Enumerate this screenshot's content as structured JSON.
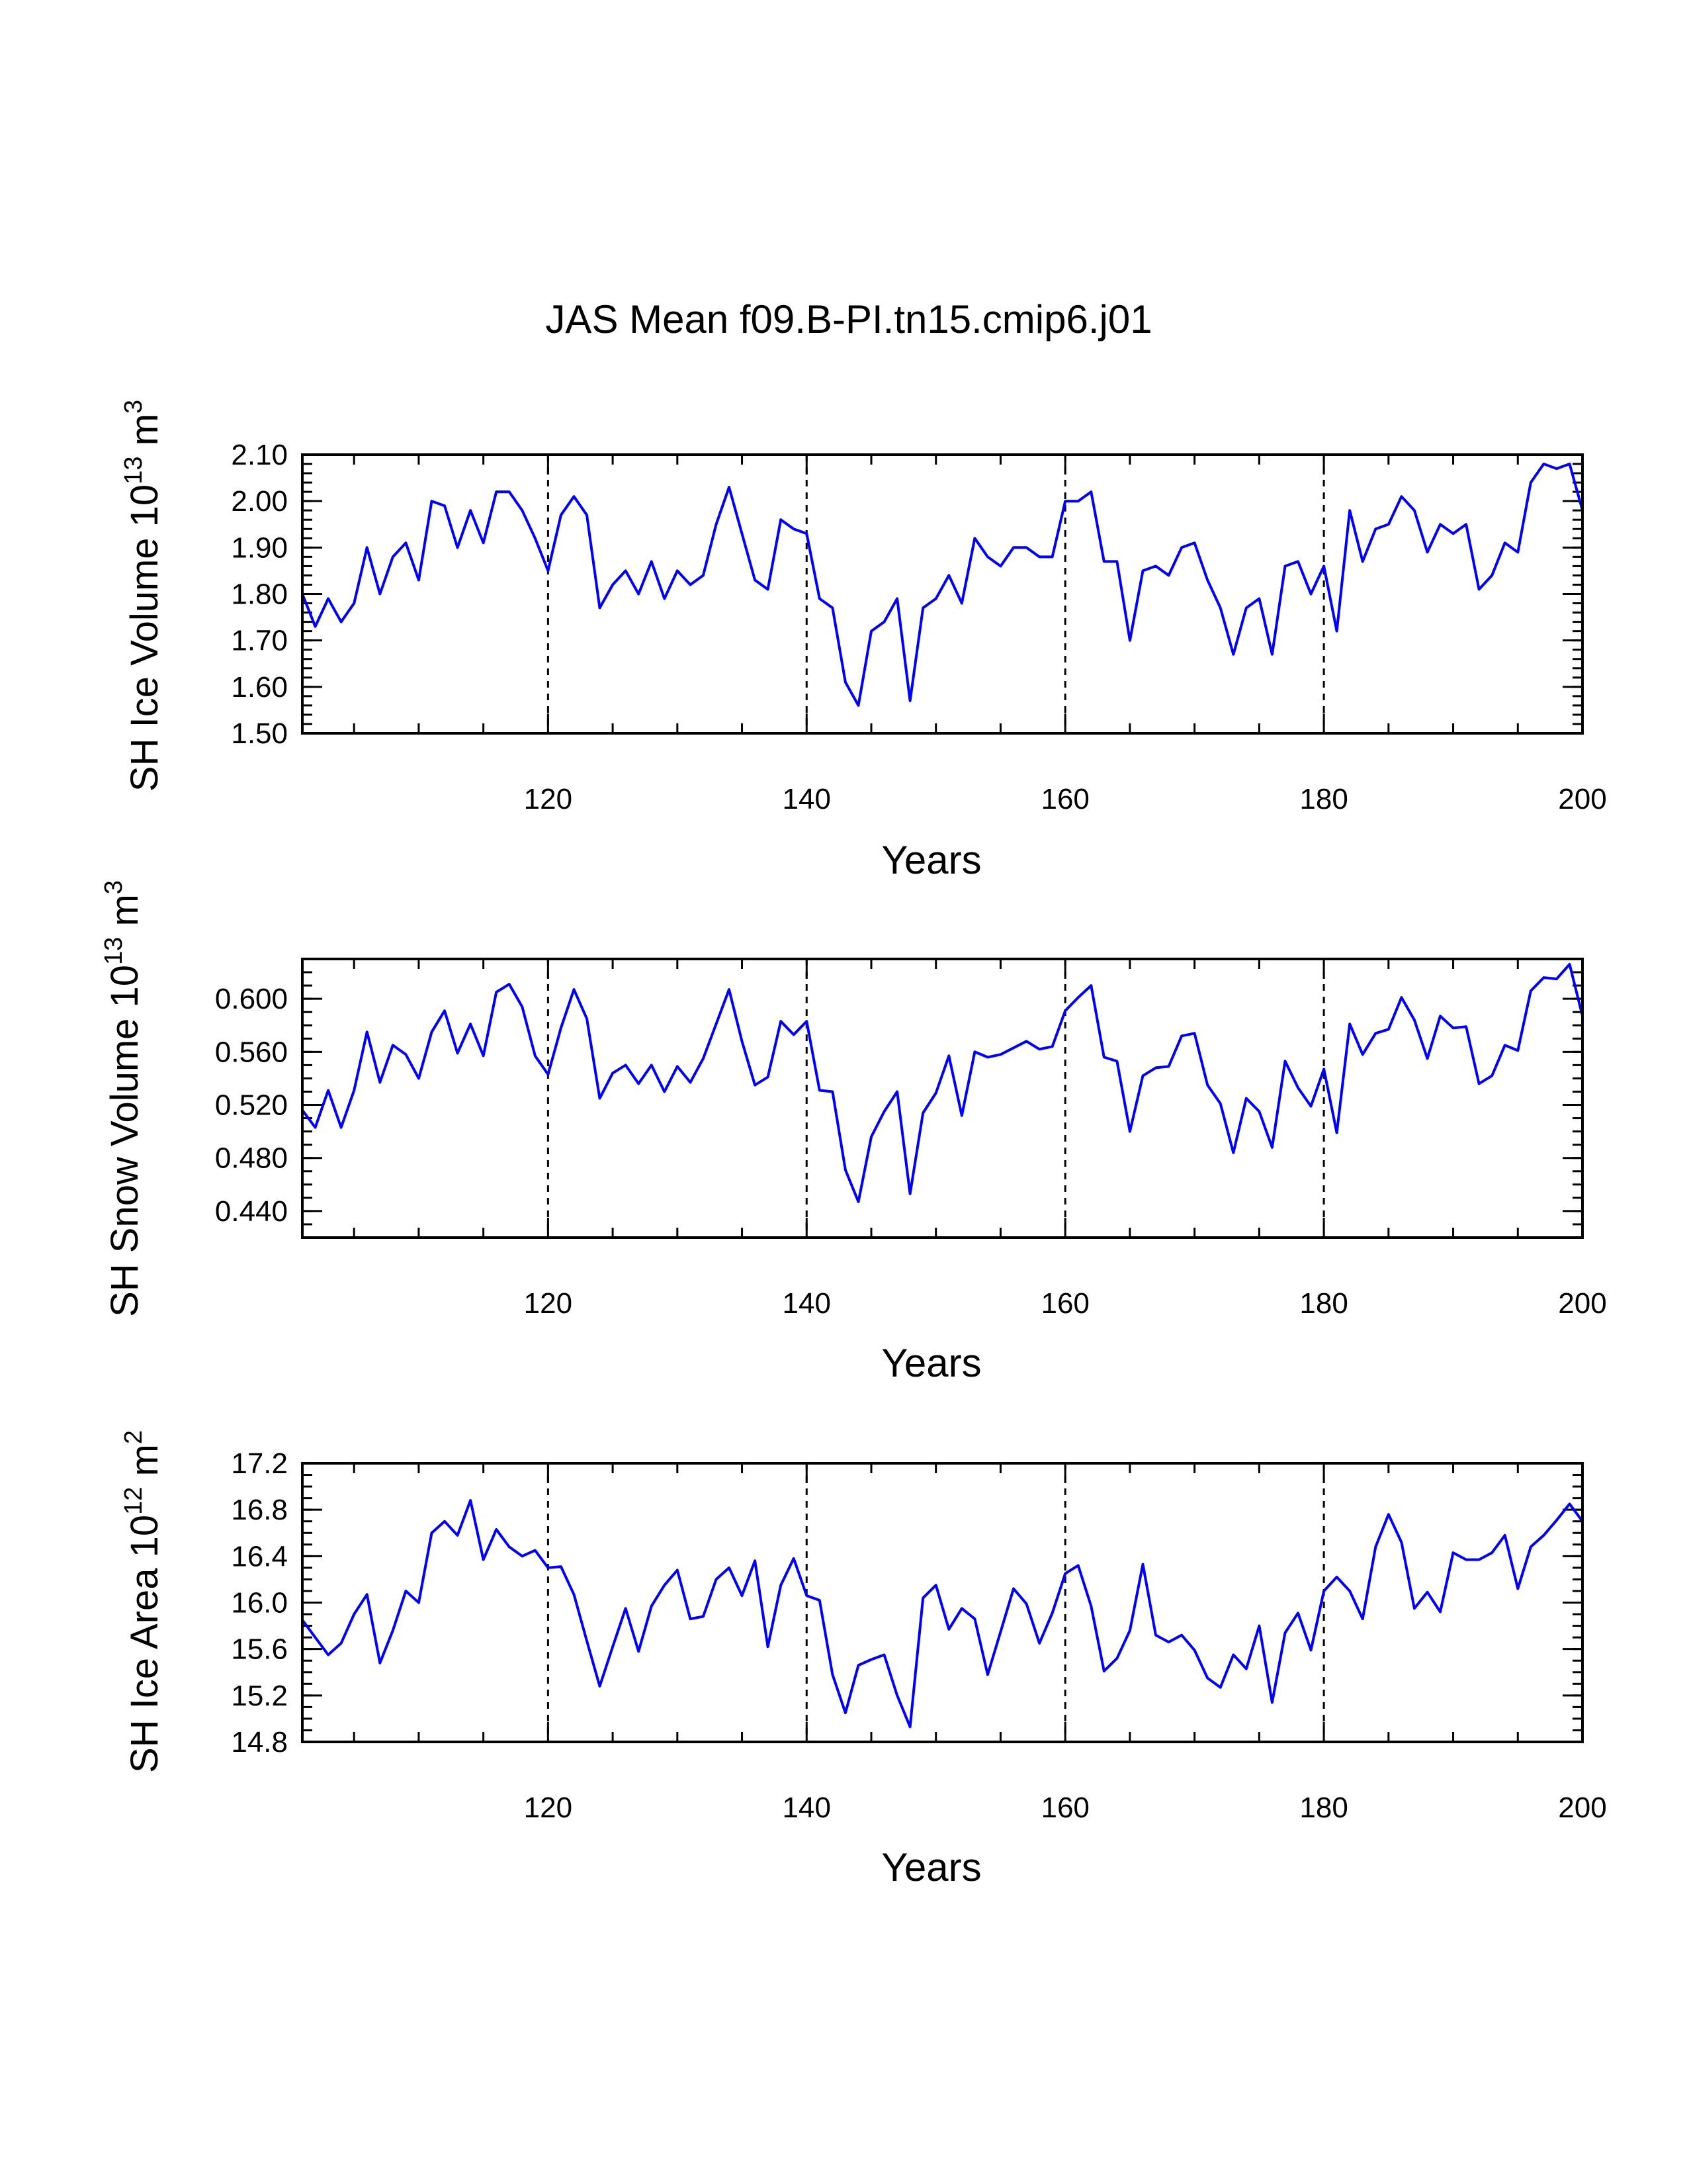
{
  "title": "JAS Mean f09.B-PI.tn15.cmip6.j01",
  "colors": {
    "line": "#0000ff",
    "axis": "#000000",
    "refline": "#000000"
  },
  "chart_data": [
    {
      "type": "line",
      "ylabel": "SH Ice Volume 10",
      "ylabel_exp": "13",
      "ylabel_unit": " m",
      "ylabel_unit_exp": "3",
      "xlabel": "Years",
      "xlim": [
        101,
        200
      ],
      "ylim": [
        1.5,
        2.1
      ],
      "xticks": [
        "120",
        "140",
        "160",
        "180",
        "200"
      ],
      "xtick_values": [
        120,
        140,
        160,
        180,
        200
      ],
      "yticks": [
        "1.50",
        "1.60",
        "1.70",
        "1.80",
        "1.90",
        "2.00",
        "2.10"
      ],
      "ytick_values": [
        1.5,
        1.6,
        1.7,
        1.8,
        1.9,
        2.0,
        2.1
      ],
      "ref_lines_x": [
        120,
        140,
        160,
        180
      ],
      "series": [
        {
          "x_start": 101,
          "values": [
            1.8,
            1.73,
            1.79,
            1.74,
            1.78,
            1.9,
            1.8,
            1.88,
            1.91,
            1.83,
            2.0,
            1.99,
            1.9,
            1.98,
            1.91,
            2.02,
            2.02,
            1.98,
            1.92,
            1.85,
            1.97,
            2.01,
            1.97,
            1.77,
            1.82,
            1.85,
            1.8,
            1.87,
            1.79,
            1.85,
            1.82,
            1.84,
            1.95,
            2.03,
            1.93,
            1.83,
            1.81,
            1.96,
            1.94,
            1.93,
            1.79,
            1.77,
            1.61,
            1.56,
            1.72,
            1.74,
            1.79,
            1.57,
            1.77,
            1.79,
            1.84,
            1.78,
            1.92,
            1.88,
            1.86,
            1.9,
            1.9,
            1.88,
            1.88,
            2.0,
            2.0,
            2.02,
            1.87,
            1.87,
            1.7,
            1.85,
            1.86,
            1.84,
            1.9,
            1.91,
            1.83,
            1.77,
            1.67,
            1.77,
            1.79,
            1.67,
            1.86,
            1.87,
            1.8,
            1.86,
            1.72,
            1.98,
            1.87,
            1.94,
            1.95,
            2.01,
            1.98,
            1.89,
            1.95,
            1.93,
            1.95,
            1.81,
            1.84,
            1.91,
            1.89,
            2.04,
            2.08,
            2.07,
            2.08,
            1.98
          ]
        }
      ]
    },
    {
      "type": "line",
      "ylabel": "SH Snow Volume 10",
      "ylabel_exp": "13",
      "ylabel_unit": " m",
      "ylabel_unit_exp": "3",
      "xlabel": "Years",
      "xlim": [
        101,
        200
      ],
      "ylim": [
        0.42,
        0.63
      ],
      "xticks": [
        "120",
        "140",
        "160",
        "180",
        "200"
      ],
      "xtick_values": [
        120,
        140,
        160,
        180,
        200
      ],
      "yticks": [
        "0.440",
        "0.480",
        "0.520",
        "0.560",
        "0.600"
      ],
      "ytick_values": [
        0.44,
        0.48,
        0.52,
        0.56,
        0.6
      ],
      "ref_lines_x": [
        120,
        140,
        160,
        180
      ],
      "series": [
        {
          "x_start": 101,
          "values": [
            0.516,
            0.503,
            0.531,
            0.503,
            0.531,
            0.575,
            0.537,
            0.565,
            0.558,
            0.54,
            0.575,
            0.591,
            0.559,
            0.581,
            0.557,
            0.605,
            0.611,
            0.594,
            0.557,
            0.543,
            0.578,
            0.607,
            0.585,
            0.525,
            0.544,
            0.55,
            0.536,
            0.55,
            0.53,
            0.549,
            0.537,
            0.555,
            0.581,
            0.607,
            0.568,
            0.535,
            0.541,
            0.583,
            0.573,
            0.583,
            0.531,
            0.53,
            0.471,
            0.447,
            0.496,
            0.515,
            0.53,
            0.453,
            0.514,
            0.529,
            0.557,
            0.512,
            0.56,
            0.556,
            0.558,
            0.563,
            0.568,
            0.562,
            0.564,
            0.591,
            0.601,
            0.61,
            0.556,
            0.553,
            0.5,
            0.542,
            0.548,
            0.549,
            0.572,
            0.574,
            0.535,
            0.521,
            0.484,
            0.525,
            0.515,
            0.488,
            0.553,
            0.533,
            0.519,
            0.547,
            0.499,
            0.581,
            0.558,
            0.574,
            0.577,
            0.601,
            0.584,
            0.555,
            0.587,
            0.578,
            0.579,
            0.536,
            0.542,
            0.565,
            0.561,
            0.606,
            0.616,
            0.615,
            0.626,
            0.587
          ]
        }
      ]
    },
    {
      "type": "line",
      "ylabel": "SH Ice Area 10",
      "ylabel_exp": "12",
      "ylabel_unit": " m",
      "ylabel_unit_exp": "2",
      "xlabel": "Years",
      "xlim": [
        101,
        200
      ],
      "ylim": [
        14.8,
        17.2
      ],
      "xticks": [
        "120",
        "140",
        "160",
        "180",
        "200"
      ],
      "xtick_values": [
        120,
        140,
        160,
        180,
        200
      ],
      "yticks": [
        "14.8",
        "15.2",
        "15.6",
        "16.0",
        "16.4",
        "16.8",
        "17.2"
      ],
      "ytick_values": [
        14.8,
        15.2,
        15.6,
        16.0,
        16.4,
        16.8,
        17.2
      ],
      "ref_lines_x": [
        120,
        140,
        160,
        180
      ],
      "series": [
        {
          "x_start": 101,
          "values": [
            15.85,
            15.7,
            15.55,
            15.65,
            15.9,
            16.07,
            15.48,
            15.76,
            16.1,
            16.0,
            16.6,
            16.7,
            16.58,
            16.88,
            16.37,
            16.63,
            16.48,
            16.4,
            16.45,
            16.3,
            16.31,
            16.07,
            15.67,
            15.28,
            15.62,
            15.95,
            15.58,
            15.97,
            16.15,
            16.28,
            15.86,
            15.88,
            16.2,
            16.3,
            16.06,
            16.36,
            15.62,
            16.15,
            16.38,
            16.06,
            16.02,
            15.38,
            15.05,
            15.46,
            15.51,
            15.55,
            15.2,
            14.93,
            16.04,
            16.15,
            15.77,
            15.95,
            15.86,
            15.38,
            15.75,
            16.12,
            15.99,
            15.65,
            15.91,
            16.25,
            16.32,
            15.97,
            15.41,
            15.52,
            15.76,
            16.33,
            15.72,
            15.66,
            15.72,
            15.59,
            15.35,
            15.27,
            15.55,
            15.43,
            15.8,
            15.14,
            15.74,
            15.91,
            15.59,
            16.1,
            16.22,
            16.1,
            15.86,
            16.48,
            16.76,
            16.52,
            15.95,
            16.09,
            15.92,
            16.43,
            16.37,
            16.37,
            16.43,
            16.58,
            16.12,
            16.48,
            16.58,
            16.71,
            16.85,
            16.7
          ]
        }
      ]
    }
  ]
}
